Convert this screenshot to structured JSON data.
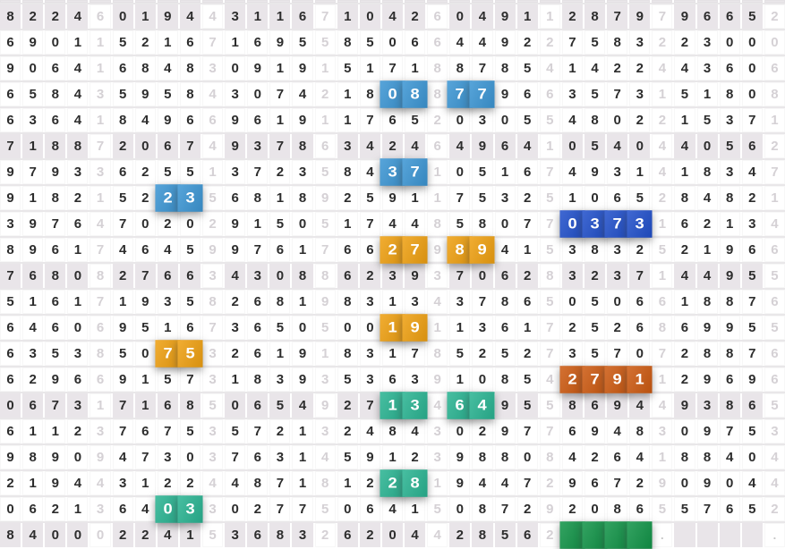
{
  "grid": {
    "columns": 35,
    "separator_columns": [
      5,
      10,
      15,
      20,
      25,
      30,
      35
    ],
    "shaded_rows": [
      1,
      6,
      11,
      16,
      21
    ],
    "rows": [
      [
        "8",
        "2",
        "2",
        "4",
        "6",
        "0",
        "1",
        "9",
        "4",
        "4",
        "3",
        "1",
        "1",
        "6",
        "7",
        "1",
        "0",
        "4",
        "2",
        "6",
        "0",
        "4",
        "9",
        "1",
        "1",
        "2",
        "8",
        "7",
        "9",
        "7",
        "9",
        "6",
        "6",
        "5",
        "2"
      ],
      [
        "6",
        "9",
        "0",
        "1",
        "1",
        "5",
        "2",
        "1",
        "6",
        "7",
        "1",
        "6",
        "9",
        "5",
        "5",
        "8",
        "5",
        "0",
        "6",
        "6",
        "4",
        "4",
        "9",
        "2",
        "2",
        "7",
        "5",
        "8",
        "3",
        "2",
        "2",
        "3",
        "0",
        "0",
        "0"
      ],
      [
        "9",
        "0",
        "6",
        "4",
        "1",
        "6",
        "8",
        "4",
        "8",
        "3",
        "0",
        "9",
        "1",
        "9",
        "1",
        "5",
        "1",
        "7",
        "1",
        "8",
        "8",
        "7",
        "8",
        "5",
        "4",
        "1",
        "4",
        "2",
        "2",
        "4",
        "4",
        "3",
        "6",
        "0",
        "6"
      ],
      [
        "6",
        "5",
        "8",
        "4",
        "3",
        "5",
        "9",
        "5",
        "8",
        "4",
        "3",
        "0",
        "7",
        "4",
        "2",
        "1",
        "8",
        "0",
        "8",
        "8",
        "7",
        "7",
        "9",
        "6",
        "6",
        "3",
        "5",
        "7",
        "3",
        "1",
        "5",
        "1",
        "8",
        "0",
        "8"
      ],
      [
        "6",
        "3",
        "6",
        "4",
        "1",
        "8",
        "4",
        "9",
        "6",
        "6",
        "9",
        "6",
        "1",
        "9",
        "1",
        "1",
        "7",
        "6",
        "5",
        "2",
        "0",
        "3",
        "0",
        "5",
        "5",
        "4",
        "8",
        "0",
        "2",
        "2",
        "1",
        "5",
        "3",
        "7",
        "1"
      ],
      [
        "7",
        "1",
        "8",
        "8",
        "7",
        "2",
        "0",
        "6",
        "7",
        "4",
        "9",
        "3",
        "7",
        "8",
        "6",
        "3",
        "4",
        "2",
        "4",
        "6",
        "4",
        "9",
        "6",
        "4",
        "1",
        "0",
        "5",
        "4",
        "0",
        "4",
        "4",
        "0",
        "5",
        "6",
        "2"
      ],
      [
        "9",
        "7",
        "9",
        "3",
        "3",
        "6",
        "2",
        "5",
        "5",
        "1",
        "3",
        "7",
        "2",
        "3",
        "5",
        "8",
        "4",
        "3",
        "7",
        "1",
        "0",
        "5",
        "1",
        "6",
        "7",
        "4",
        "9",
        "3",
        "1",
        "4",
        "1",
        "8",
        "3",
        "4",
        "7"
      ],
      [
        "9",
        "1",
        "8",
        "2",
        "1",
        "5",
        "2",
        "2",
        "3",
        "5",
        "6",
        "8",
        "1",
        "8",
        "9",
        "2",
        "5",
        "9",
        "1",
        "1",
        "7",
        "5",
        "3",
        "2",
        "5",
        "1",
        "0",
        "6",
        "5",
        "2",
        "8",
        "4",
        "8",
        "2",
        "1"
      ],
      [
        "3",
        "9",
        "7",
        "6",
        "4",
        "7",
        "0",
        "2",
        "0",
        "2",
        "9",
        "1",
        "5",
        "0",
        "5",
        "1",
        "7",
        "4",
        "4",
        "8",
        "5",
        "8",
        "0",
        "7",
        "7",
        "0",
        "3",
        "7",
        "3",
        "1",
        "6",
        "2",
        "1",
        "3",
        "4"
      ],
      [
        "8",
        "9",
        "6",
        "1",
        "7",
        "4",
        "6",
        "4",
        "5",
        "9",
        "9",
        "7",
        "6",
        "1",
        "7",
        "6",
        "6",
        "2",
        "7",
        "9",
        "8",
        "9",
        "4",
        "1",
        "5",
        "3",
        "8",
        "3",
        "2",
        "5",
        "2",
        "1",
        "9",
        "6",
        "6"
      ],
      [
        "7",
        "6",
        "8",
        "0",
        "8",
        "2",
        "7",
        "6",
        "6",
        "3",
        "4",
        "3",
        "0",
        "8",
        "8",
        "6",
        "2",
        "3",
        "9",
        "3",
        "7",
        "0",
        "6",
        "2",
        "8",
        "3",
        "2",
        "3",
        "7",
        "1",
        "4",
        "4",
        "9",
        "5",
        "5"
      ],
      [
        "5",
        "1",
        "6",
        "1",
        "7",
        "1",
        "9",
        "3",
        "5",
        "8",
        "2",
        "6",
        "8",
        "1",
        "9",
        "8",
        "3",
        "1",
        "3",
        "4",
        "3",
        "7",
        "8",
        "6",
        "5",
        "0",
        "5",
        "0",
        "6",
        "6",
        "1",
        "8",
        "8",
        "7",
        "6"
      ],
      [
        "6",
        "4",
        "6",
        "0",
        "6",
        "9",
        "5",
        "1",
        "6",
        "7",
        "3",
        "6",
        "5",
        "0",
        "5",
        "0",
        "0",
        "1",
        "9",
        "1",
        "1",
        "3",
        "6",
        "1",
        "7",
        "2",
        "5",
        "2",
        "6",
        "8",
        "6",
        "9",
        "9",
        "5",
        "5"
      ],
      [
        "6",
        "3",
        "5",
        "3",
        "8",
        "5",
        "0",
        "7",
        "5",
        "3",
        "2",
        "6",
        "1",
        "9",
        "1",
        "8",
        "3",
        "1",
        "7",
        "8",
        "5",
        "2",
        "5",
        "2",
        "7",
        "3",
        "5",
        "7",
        "0",
        "7",
        "2",
        "8",
        "8",
        "7",
        "6"
      ],
      [
        "6",
        "2",
        "9",
        "6",
        "6",
        "9",
        "1",
        "5",
        "7",
        "3",
        "1",
        "8",
        "3",
        "9",
        "3",
        "5",
        "3",
        "6",
        "3",
        "9",
        "1",
        "0",
        "8",
        "5",
        "4",
        "2",
        "7",
        "9",
        "1",
        "1",
        "2",
        "9",
        "6",
        "9",
        "6"
      ],
      [
        "0",
        "6",
        "7",
        "3",
        "1",
        "7",
        "1",
        "6",
        "8",
        "5",
        "0",
        "6",
        "5",
        "4",
        "9",
        "2",
        "7",
        "1",
        "3",
        "4",
        "6",
        "4",
        "9",
        "5",
        "5",
        "8",
        "6",
        "9",
        "4",
        "4",
        "9",
        "3",
        "8",
        "6",
        "5"
      ],
      [
        "6",
        "1",
        "1",
        "2",
        "3",
        "7",
        "6",
        "7",
        "5",
        "3",
        "5",
        "7",
        "2",
        "1",
        "3",
        "2",
        "4",
        "8",
        "4",
        "3",
        "0",
        "2",
        "9",
        "7",
        "7",
        "6",
        "9",
        "4",
        "8",
        "3",
        "0",
        "9",
        "7",
        "5",
        "3"
      ],
      [
        "9",
        "8",
        "9",
        "0",
        "9",
        "4",
        "7",
        "3",
        "0",
        "3",
        "7",
        "6",
        "3",
        "1",
        "4",
        "5",
        "9",
        "1",
        "2",
        "3",
        "9",
        "8",
        "8",
        "0",
        "8",
        "4",
        "2",
        "6",
        "4",
        "1",
        "8",
        "8",
        "4",
        "0",
        "4"
      ],
      [
        "2",
        "1",
        "9",
        "4",
        "4",
        "3",
        "1",
        "2",
        "2",
        "4",
        "4",
        "8",
        "7",
        "1",
        "8",
        "1",
        "2",
        "2",
        "8",
        "1",
        "9",
        "4",
        "4",
        "7",
        "2",
        "9",
        "6",
        "7",
        "2",
        "9",
        "0",
        "9",
        "0",
        "4",
        "4"
      ],
      [
        "0",
        "6",
        "2",
        "1",
        "3",
        "6",
        "4",
        "0",
        "3",
        "3",
        "0",
        "2",
        "7",
        "7",
        "5",
        "0",
        "6",
        "4",
        "1",
        "5",
        "0",
        "8",
        "7",
        "2",
        "9",
        "2",
        "0",
        "8",
        "6",
        "5",
        "5",
        "7",
        "6",
        "5",
        "2"
      ],
      [
        "8",
        "4",
        "0",
        "0",
        "0",
        "2",
        "2",
        "4",
        "1",
        "5",
        "3",
        "6",
        "8",
        "3",
        "2",
        "6",
        "2",
        "0",
        "4",
        "4",
        "2",
        "8",
        "5",
        "6",
        "2",
        "",
        "",
        "",
        "",
        ".",
        "",
        "",
        "",
        "",
        "."
      ]
    ],
    "highlights": [
      {
        "row": 4,
        "cols": [
          18,
          19
        ],
        "style": "blue"
      },
      {
        "row": 4,
        "cols": [
          21,
          22
        ],
        "style": "blue"
      },
      {
        "row": 7,
        "cols": [
          18,
          19
        ],
        "style": "blue"
      },
      {
        "row": 8,
        "cols": [
          8,
          9
        ],
        "style": "blue"
      },
      {
        "row": 9,
        "cols": [
          26,
          27,
          28,
          29
        ],
        "style": "dark_blue"
      },
      {
        "row": 10,
        "cols": [
          18,
          19
        ],
        "style": "orange"
      },
      {
        "row": 10,
        "cols": [
          21,
          22
        ],
        "style": "orange"
      },
      {
        "row": 13,
        "cols": [
          18,
          19
        ],
        "style": "orange"
      },
      {
        "row": 14,
        "cols": [
          8,
          9
        ],
        "style": "orange"
      },
      {
        "row": 15,
        "cols": [
          26,
          27,
          28,
          29
        ],
        "style": "dark_orange"
      },
      {
        "row": 16,
        "cols": [
          18,
          19
        ],
        "style": "teal"
      },
      {
        "row": 16,
        "cols": [
          21,
          22
        ],
        "style": "teal"
      },
      {
        "row": 19,
        "cols": [
          18,
          19
        ],
        "style": "teal"
      },
      {
        "row": 20,
        "cols": [
          8,
          9
        ],
        "style": "teal"
      },
      {
        "row": 21,
        "cols": [
          26,
          27,
          28,
          29
        ],
        "style": "green"
      }
    ],
    "colors": {
      "blue": "#3c96d4",
      "dark_blue": "#2150cb",
      "orange": "#efa011",
      "dark_orange": "#cd5a11",
      "teal": "#2ab492",
      "green": "#129448",
      "shaded_row_bg": "#e9e5e9",
      "digit_dark": "#2d2d2d",
      "digit_light": "#d5d1d5",
      "row_divider": "#e9e7e9"
    }
  }
}
